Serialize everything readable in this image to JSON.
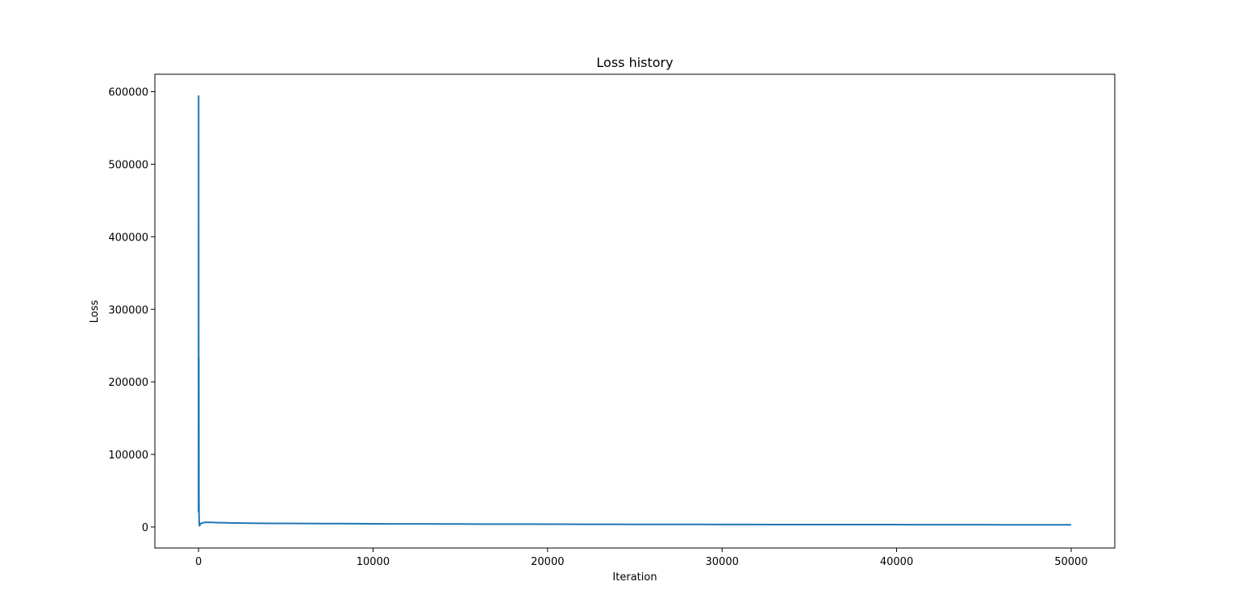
{
  "chart_data": {
    "type": "line",
    "title": "Loss history",
    "xlabel": "Iteration",
    "ylabel": "Loss",
    "xlim": [
      -2500,
      52500
    ],
    "ylim": [
      -29000,
      624000
    ],
    "xticks": [
      0,
      10000,
      20000,
      30000,
      40000,
      50000
    ],
    "yticks": [
      0,
      100000,
      200000,
      300000,
      400000,
      500000,
      600000
    ],
    "grid": false,
    "line_color": "#1f77b4",
    "series": [
      {
        "x": [
          0,
          5,
          10,
          15,
          20,
          25,
          30,
          40,
          50,
          60,
          80,
          100,
          150,
          200,
          300,
          500,
          800,
          1000,
          1500,
          2000,
          3000,
          4000,
          5000,
          6000,
          7000,
          8000,
          9000,
          10000,
          11000,
          12000,
          13000,
          14000,
          15000,
          16000,
          17000,
          18000,
          19000,
          20000,
          21000,
          22000,
          23000,
          24000,
          25000,
          26000,
          27000,
          28000,
          29000,
          30000,
          31000,
          32000,
          33000,
          34000,
          35000,
          36000,
          37000,
          38000,
          39000,
          40000,
          41000,
          42000,
          43000,
          44000,
          45000,
          46000,
          47000,
          48000,
          49000,
          50000
        ],
        "y": [
          20000,
          594000,
          250000,
          60000,
          232000,
          40000,
          15000,
          6000,
          2500,
          1500,
          3000,
          4000,
          5000,
          5500,
          6000,
          6500,
          6300,
          6000,
          5800,
          5500,
          5200,
          5000,
          4900,
          4800,
          4700,
          4600,
          4500,
          4400,
          4300,
          4300,
          4200,
          4100,
          4100,
          4000,
          4000,
          3900,
          3900,
          3800,
          3800,
          3700,
          3700,
          3700,
          3600,
          3600,
          3500,
          3500,
          3500,
          3400,
          3400,
          3400,
          3300,
          3300,
          3300,
          3300,
          3200,
          3200,
          3200,
          3200,
          3100,
          3100,
          3100,
          3100,
          3100,
          3000,
          3000,
          3000,
          3000,
          3000
        ]
      }
    ]
  }
}
